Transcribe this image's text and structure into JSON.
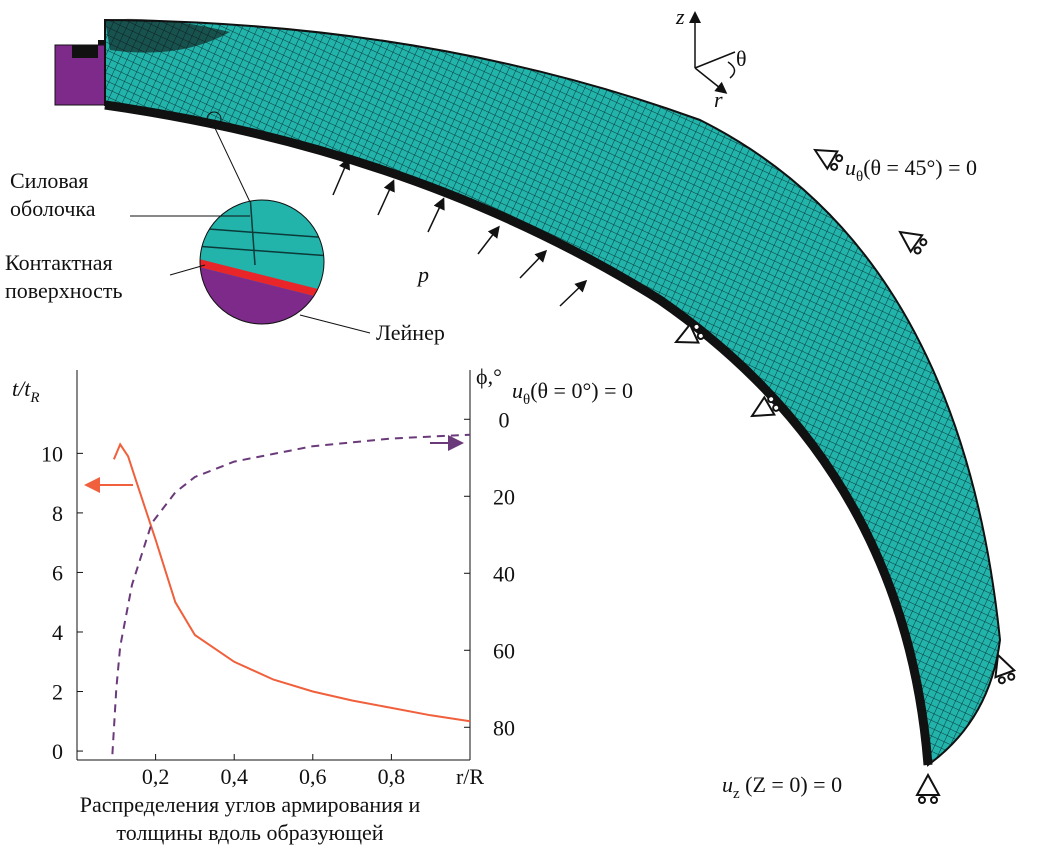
{
  "diagram": {
    "axes_labels": {
      "z": "z",
      "r": "r",
      "theta": "θ"
    },
    "pressure": "p",
    "callouts": {
      "shell": [
        "Силовая",
        "оболочка"
      ],
      "contact": [
        "Контактная",
        "поверхность"
      ],
      "liner": "Лейнер"
    },
    "conditions": [
      {
        "symbol": "u",
        "subscript": "θ",
        "rest": "(θ = 45°) = 0"
      },
      {
        "symbol": "u",
        "subscript": "θ",
        "rest": "(θ = 0°) = 0"
      },
      {
        "symbol": "u",
        "subscript": "z",
        "rest": " (Z = 0) = 0"
      }
    ]
  },
  "chart_data": {
    "type": "line",
    "caption": [
      "Распределения углов армирования и",
      "толщины вдоль образующей"
    ],
    "x_label": "r/R",
    "y_label": {
      "main": "t/t",
      "subscript": "R"
    },
    "y2_label": "ϕ,°",
    "xlim": [
      0,
      1
    ],
    "xticks": [
      {
        "value": 0.2,
        "label": "0,2"
      },
      {
        "value": 0.4,
        "label": "0,4"
      },
      {
        "value": 0.6,
        "label": "0,6"
      },
      {
        "value": 0.8,
        "label": "0,8"
      }
    ],
    "ylim": [
      -0.3,
      12.8
    ],
    "yticks": [
      0,
      2,
      4,
      6,
      8,
      10
    ],
    "y2lim": [
      88.5,
      -12.8
    ],
    "y2ticks": [
      0,
      20,
      40,
      60,
      80
    ],
    "series": [
      {
        "color": "#f0603c",
        "dash": false,
        "x": [
          0.094,
          0.11,
          0.13,
          0.15,
          0.2,
          0.25,
          0.3,
          0.4,
          0.5,
          0.6,
          0.7,
          0.8,
          0.9,
          1.0
        ],
        "values": [
          9.8,
          10.3,
          9.9,
          9.1,
          7.1,
          5.0,
          3.9,
          3.0,
          2.4,
          2.0,
          1.7,
          1.45,
          1.2,
          1.0
        ]
      },
      {
        "color": "#6a3a7a",
        "dash": true,
        "axis": "y2",
        "x": [
          0.09,
          0.1,
          0.11,
          0.14,
          0.19,
          0.25,
          0.3,
          0.4,
          0.5,
          0.6,
          0.8,
          1.0
        ],
        "values": [
          87,
          70,
          59,
          43,
          27,
          19,
          15,
          11,
          9,
          7,
          5,
          4
        ]
      }
    ]
  }
}
